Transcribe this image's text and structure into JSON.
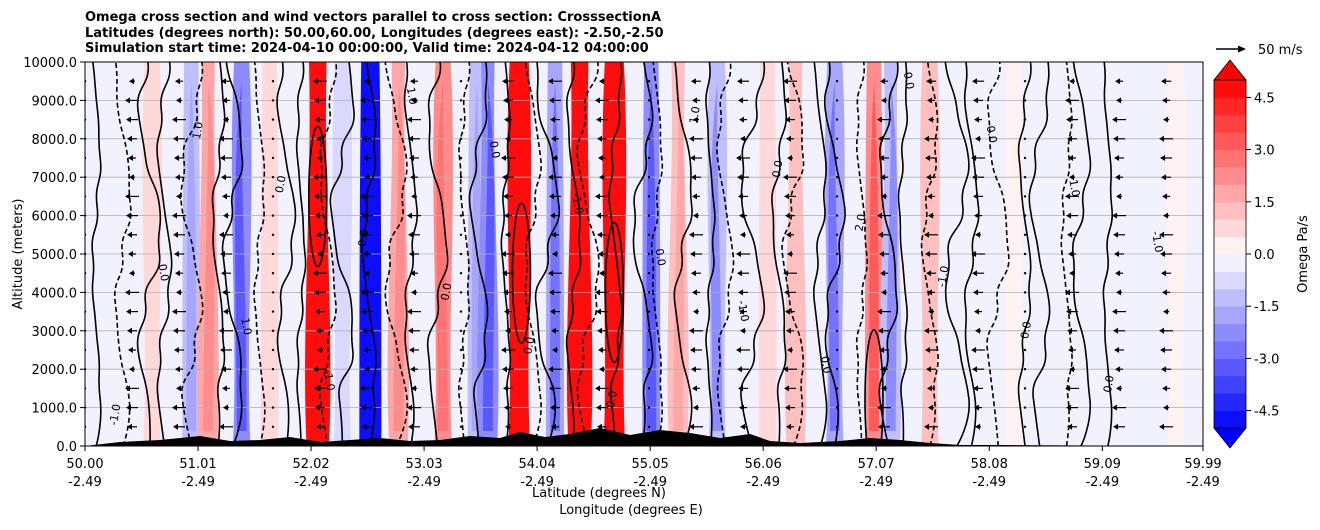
{
  "chart_data": {
    "type": "heatmap",
    "title_lines": [
      "Omega cross section and wind vectors parallel to cross section: CrosssectionA",
      "Latitudes (degrees north): 50.00,60.00, Longitudes (degrees east): -2.50,-2.50",
      "Simulation start time: 2024-04-10 00:00:00, Valid time: 2024-04-12 04:00:00"
    ],
    "ylabel": "Altitude (meters)",
    "xlabel_lines": [
      "Latitude (degrees N)",
      "Longitude (degrees E)"
    ],
    "ylim": [
      0,
      10000
    ],
    "xlim": [
      50.0,
      59.99
    ],
    "y_ticks": [
      "0.0",
      "1000.0",
      "2000.0",
      "3000.0",
      "4000.0",
      "5000.0",
      "6000.0",
      "7000.0",
      "8000.0",
      "9000.0",
      "10000.0"
    ],
    "x_ticks": [
      {
        "lat": "50.00",
        "lon": "-2.49"
      },
      {
        "lat": "51.01",
        "lon": "-2.49"
      },
      {
        "lat": "52.02",
        "lon": "-2.49"
      },
      {
        "lat": "53.03",
        "lon": "-2.49"
      },
      {
        "lat": "54.04",
        "lon": "-2.49"
      },
      {
        "lat": "55.05",
        "lon": "-2.49"
      },
      {
        "lat": "56.06",
        "lon": "-2.49"
      },
      {
        "lat": "57.07",
        "lon": "-2.49"
      },
      {
        "lat": "58.08",
        "lon": "-2.49"
      },
      {
        "lat": "59.09",
        "lon": "-2.49"
      },
      {
        "lat": "59.99",
        "lon": "-2.49"
      }
    ],
    "grid": "horizontal",
    "colorbar": {
      "label": "Omega Pa/s",
      "range": [
        -5.0,
        5.0
      ],
      "ticks": [
        "4.5",
        "3.0",
        "1.5",
        "0.0",
        "-1.5",
        "-3.0",
        "-4.5"
      ],
      "levels": 20,
      "extend": "both"
    },
    "quiver_key": {
      "label": "50 m/s",
      "value": 50
    },
    "omega_bands": [
      {
        "lat": 50.6,
        "omega": 0.8
      },
      {
        "lat": 50.95,
        "omega": -1.2
      },
      {
        "lat": 51.1,
        "omega": 1.6
      },
      {
        "lat": 51.4,
        "omega": -2.4
      },
      {
        "lat": 51.65,
        "omega": 0.6
      },
      {
        "lat": 52.08,
        "omega": 4.6
      },
      {
        "lat": 52.3,
        "omega": -1.0
      },
      {
        "lat": 52.55,
        "omega": -4.8
      },
      {
        "lat": 52.8,
        "omega": 1.5
      },
      {
        "lat": 53.2,
        "omega": 2.0
      },
      {
        "lat": 53.5,
        "omega": -1.4
      },
      {
        "lat": 53.6,
        "omega": -2.5
      },
      {
        "lat": 53.88,
        "omega": 4.8
      },
      {
        "lat": 54.2,
        "omega": -1.8
      },
      {
        "lat": 54.42,
        "omega": 4.5
      },
      {
        "lat": 54.73,
        "omega": 5.0
      },
      {
        "lat": 55.06,
        "omega": -2.2
      },
      {
        "lat": 55.3,
        "omega": 1.3
      },
      {
        "lat": 55.65,
        "omega": -1.5
      },
      {
        "lat": 56.1,
        "omega": 0.8
      },
      {
        "lat": 56.35,
        "omega": 1.0
      },
      {
        "lat": 56.7,
        "omega": -1.8
      },
      {
        "lat": 57.05,
        "omega": 2.2
      },
      {
        "lat": 57.2,
        "omega": -1.5
      },
      {
        "lat": 57.55,
        "omega": 1.0
      },
      {
        "lat": 58.3,
        "omega": 0.4
      },
      {
        "lat": 59.2,
        "omega": -0.5
      },
      {
        "lat": 59.75,
        "omega": 0.3
      }
    ],
    "contour_labels": [
      "-1.0",
      "0.0",
      "1.0",
      "1.0",
      "0.0",
      "-1.0",
      "0.0",
      "1.0",
      "0.0",
      "0.0",
      "0.0",
      "-1.0",
      "0.0",
      "0.0",
      "1.0",
      "-1.0",
      "0.0",
      "0.0",
      "2.0",
      "0.0",
      "-1.0",
      "0.0",
      "0.0",
      "1.0",
      "0.0",
      "-1.0"
    ]
  }
}
